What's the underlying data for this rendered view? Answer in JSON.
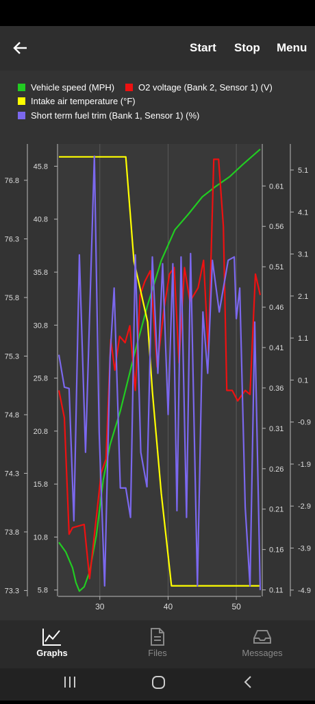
{
  "app_bar": {
    "actions": [
      "Start",
      "Stop",
      "Menu"
    ]
  },
  "chart_data": {
    "type": "line",
    "xlim": [
      23.9,
      53.6
    ],
    "xticks": [
      30,
      40,
      50
    ],
    "grid": true,
    "series": [
      {
        "name": "Vehicle speed (MPH)",
        "color": "#22cc22",
        "x": [
          24,
          25,
          26,
          26.5,
          27,
          27.7,
          28.5,
          29.5,
          30.5,
          31.5,
          33,
          35,
          37,
          39,
          41,
          43,
          45,
          47,
          49,
          51,
          53.5
        ],
        "values": [
          10.3,
          9.4,
          7.9,
          6.5,
          5.7,
          6.1,
          7.5,
          11.0,
          16.2,
          19.5,
          22.7,
          27.9,
          32.7,
          36.9,
          39.8,
          41.3,
          42.9,
          43.9,
          44.8,
          46.0,
          47.4
        ],
        "ylim": [
          5.2,
          47.9
        ],
        "yticks": [
          5.8,
          10.8,
          15.8,
          20.8,
          25.8,
          30.8,
          35.8,
          40.8,
          45.8
        ]
      },
      {
        "name": "O2 voltage (Bank 2, Sensor 1) (V)",
        "color": "#ee1111",
        "x": [
          24,
          24.8,
          25.5,
          26,
          27.7,
          28.5,
          29.1,
          30.2,
          30.9,
          31.6,
          32.2,
          32.9,
          33.7,
          34.4,
          35.2,
          35.9,
          36.6,
          37.4,
          38.4,
          39.4,
          40.2,
          40.9,
          41.6,
          42.4,
          43.2,
          44.4,
          45.2,
          45.9,
          46.7,
          47.4,
          48.1,
          48.6,
          49.4,
          50.2,
          51.3,
          52,
          52.8,
          53.5
        ],
        "values": [
          0.357,
          0.323,
          0.179,
          0.187,
          0.191,
          0.124,
          0.17,
          0.255,
          0.272,
          0.42,
          0.382,
          0.424,
          0.416,
          0.437,
          0.357,
          0.475,
          0.492,
          0.505,
          0.386,
          0.458,
          0.501,
          0.509,
          0.391,
          0.509,
          0.467,
          0.484,
          0.518,
          0.403,
          0.643,
          0.643,
          0.56,
          0.357,
          0.357,
          0.344,
          0.357,
          0.352,
          0.501,
          0.475
        ],
        "ylim": [
          0.102,
          0.662
        ],
        "yticks": [
          0.11,
          0.16,
          0.21,
          0.26,
          0.31,
          0.36,
          0.41,
          0.46,
          0.51,
          0.56,
          0.61
        ]
      },
      {
        "name": "Intake air temperature (°F)",
        "color": "#ffff00",
        "x": [
          24,
          33.8,
          35,
          37,
          37.7,
          39,
          40.5,
          53.5
        ],
        "values": [
          77.0,
          77.0,
          76.11,
          75.59,
          75.0,
          74.13,
          73.34,
          73.34
        ],
        "ylim": [
          73.25,
          77.11
        ],
        "yticks": [
          73.3,
          73.8,
          74.3,
          74.8,
          75.3,
          75.8,
          76.3,
          76.8
        ]
      },
      {
        "name": "Short term fuel trim (Bank 1, Sensor 1) (%)",
        "color": "#7b68ee",
        "x": [
          24,
          24.8,
          25.5,
          26.2,
          27,
          27.9,
          29.2,
          29.9,
          30.7,
          31.5,
          32.1,
          33,
          33.8,
          34.5,
          35.2,
          36,
          36.9,
          37.7,
          38.5,
          39.2,
          40,
          40.7,
          41.3,
          41.9,
          42.7,
          43.3,
          44.3,
          45.1,
          45.8,
          46.5,
          47.5,
          48.8,
          49.7,
          50,
          50.5,
          51.3,
          52,
          52.7,
          53.5
        ],
        "values": [
          0.7,
          -0.07,
          -0.1,
          -3.25,
          3.08,
          -1.62,
          5.43,
          -1.13,
          -4.8,
          0.63,
          2.29,
          -2.47,
          -2.47,
          -3.17,
          3.08,
          -1.62,
          -2.44,
          3.03,
          0.26,
          2.87,
          -0.72,
          2.87,
          -3.01,
          3.03,
          -3.17,
          3.11,
          -4.8,
          1.72,
          0.26,
          2.95,
          1.72,
          2.95,
          3.03,
          1.56,
          2.29,
          -2.93,
          -4.8,
          1.48,
          -4.9
        ],
        "ylim": [
          -5.05,
          5.72
        ],
        "yticks": [
          -4.9,
          -3.9,
          -2.9,
          -1.9,
          -0.9,
          0.1,
          1.1,
          2.1,
          3.1,
          4.1,
          5.1
        ]
      }
    ]
  },
  "bottom_nav": {
    "items": [
      "Graphs",
      "Files",
      "Messages"
    ]
  }
}
